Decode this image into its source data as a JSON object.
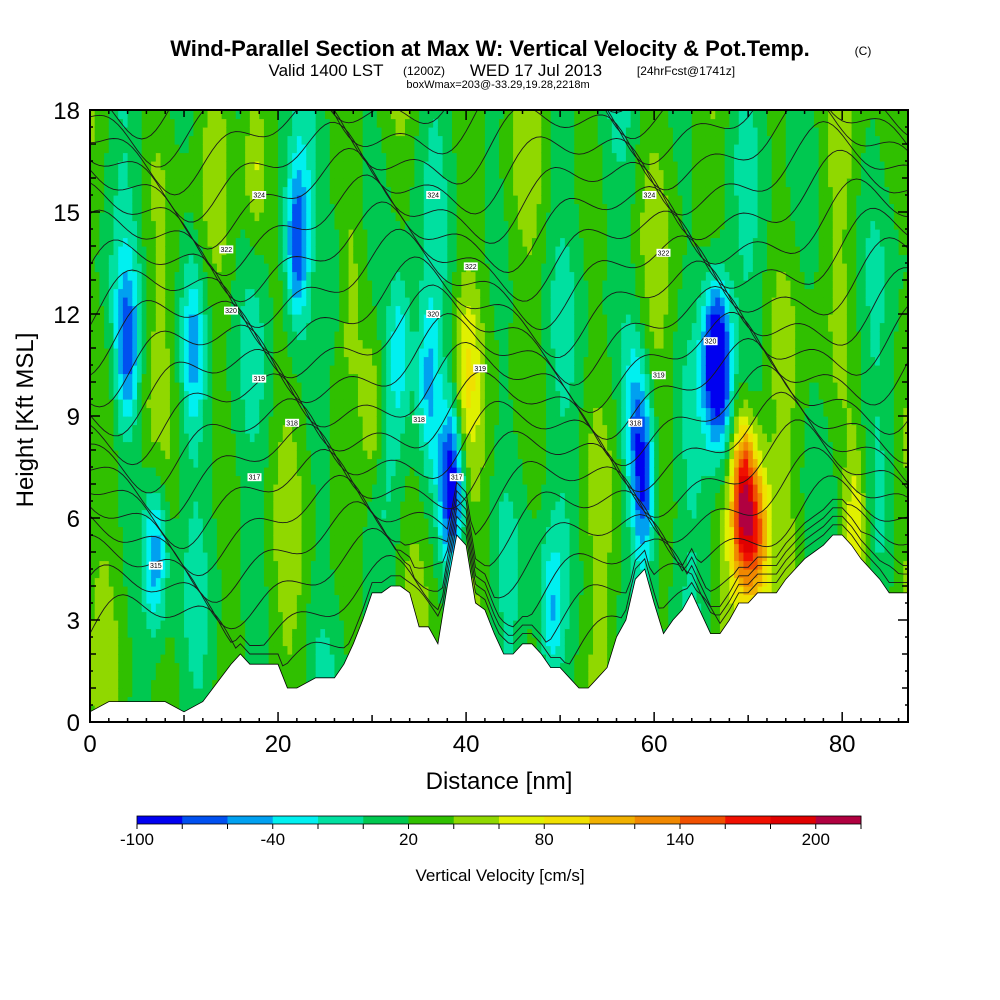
{
  "header": {
    "title": "Wind-Parallel Section at Max W: Vertical Velocity & Pot.Temp.",
    "copyright": "(C)",
    "valid_prefix": "Valid 1400 LST",
    "valid_utc": "(1200Z)",
    "valid_date": "WED 17 Jul 2013",
    "forecast": "[24hrFcst@1741z]",
    "box_info": "boxWmax=203@-33.29,19.28,2218m"
  },
  "chart_data": {
    "type": "heatmap",
    "title": "Wind-Parallel Section at Max W: Vertical Velocity & Pot.Temp.",
    "xlabel": "Distance [nm]",
    "ylabel": "Height [Kft MSL]",
    "xlim": [
      0,
      87
    ],
    "ylim": [
      0,
      18
    ],
    "x_ticks": [
      0,
      20,
      40,
      60,
      80
    ],
    "y_ticks": [
      0,
      3,
      6,
      9,
      12,
      15,
      18
    ],
    "x_tick_labels": [
      "0",
      "20",
      "40",
      "60",
      "80"
    ],
    "y_tick_labels": [
      "0",
      "3",
      "6",
      "9",
      "12",
      "15",
      "18"
    ],
    "colorbar": {
      "label": "Vertical Velocity [cm/s]",
      "min": -100,
      "max": 220,
      "step": 20,
      "tick_values": [
        -100,
        -40,
        20,
        80,
        140,
        200
      ],
      "tick_labels": [
        "-100",
        "-40",
        "20",
        "80",
        "140",
        "200"
      ],
      "colors": [
        "#0000f0",
        "#0050f0",
        "#00a0f0",
        "#00f0f0",
        "#00e0a0",
        "#00c850",
        "#30c000",
        "#90d800",
        "#e0f000",
        "#f0e000",
        "#f0b000",
        "#f08800",
        "#f05000",
        "#f01000",
        "#e00000",
        "#b00040"
      ]
    },
    "terrain_profile": {
      "x": [
        0,
        2,
        3,
        8,
        10,
        12,
        15,
        16,
        17,
        20,
        21,
        22,
        24,
        25,
        26,
        27,
        28,
        29,
        30,
        31,
        32,
        33,
        34,
        35,
        36,
        37,
        38,
        39,
        40,
        41,
        42,
        43,
        44,
        45,
        46,
        47,
        48,
        49,
        50,
        51,
        52,
        53,
        54,
        55,
        56,
        57,
        58,
        59,
        60,
        61,
        62,
        63,
        64,
        65,
        66,
        67,
        68,
        69,
        70,
        71,
        72,
        73,
        74,
        75,
        76,
        77,
        78,
        79,
        80,
        81,
        82,
        83,
        84,
        85,
        86,
        87
      ],
      "height": [
        0.3,
        0.6,
        0.6,
        0.6,
        0.3,
        0.6,
        1.7,
        2.0,
        1.7,
        1.7,
        1.0,
        1.0,
        1.3,
        1.3,
        1.3,
        1.7,
        2.3,
        3.0,
        3.8,
        3.8,
        4.0,
        4.0,
        3.8,
        2.8,
        2.8,
        2.3,
        4.0,
        5.5,
        5.2,
        3.5,
        3.3,
        2.6,
        2.0,
        2.0,
        2.3,
        2.3,
        2.0,
        1.6,
        1.6,
        1.3,
        1.0,
        1.0,
        1.3,
        1.6,
        2.5,
        3.0,
        4.2,
        4.5,
        3.5,
        2.6,
        3.0,
        3.3,
        3.8,
        3.2,
        2.6,
        2.6,
        3.0,
        3.5,
        3.5,
        3.8,
        3.8,
        3.8,
        4.2,
        4.5,
        4.8,
        5.0,
        5.2,
        5.5,
        5.5,
        5.2,
        4.8,
        4.5,
        4.2,
        3.8,
        3.8,
        3.8
      ],
      "fill": "#ffffff"
    },
    "vertical_velocity_features": [
      {
        "x": 4,
        "y": 11,
        "value": -60
      },
      {
        "x": 7,
        "y": 5,
        "value": -60
      },
      {
        "x": 11,
        "y": 11,
        "value": -40
      },
      {
        "x": 17.5,
        "y": 16.5,
        "value": 80
      },
      {
        "x": 22,
        "y": 14,
        "value": -80
      },
      {
        "x": 26,
        "y": 13,
        "value": -20
      },
      {
        "x": 30,
        "y": 9,
        "value": 80
      },
      {
        "x": 33,
        "y": 11,
        "value": -40
      },
      {
        "x": 36,
        "y": 10,
        "value": -40
      },
      {
        "x": 38.5,
        "y": 7,
        "value": -100
      },
      {
        "x": 40,
        "y": 10,
        "value": 60
      },
      {
        "x": 49,
        "y": 3,
        "value": -40
      },
      {
        "x": 58,
        "y": 9,
        "value": -40
      },
      {
        "x": 59,
        "y": 7,
        "value": -80
      },
      {
        "x": 66,
        "y": 11,
        "value": -40
      },
      {
        "x": 67,
        "y": 10.5,
        "value": -100
      },
      {
        "x": 69.5,
        "y": 6.5,
        "value": 200
      },
      {
        "x": 71,
        "y": 5.5,
        "value": 120
      },
      {
        "x": 81.5,
        "y": 6,
        "value": 80
      }
    ],
    "potential_temperature_contours": {
      "labels": [
        {
          "x": 7,
          "y": 4.6,
          "text": "315"
        },
        {
          "x": 17.5,
          "y": 7.2,
          "text": "317"
        },
        {
          "x": 21.5,
          "y": 8.8,
          "text": "318"
        },
        {
          "x": 18,
          "y": 10.1,
          "text": "319"
        },
        {
          "x": 15,
          "y": 12.1,
          "text": "320"
        },
        {
          "x": 14.5,
          "y": 13.9,
          "text": "322"
        },
        {
          "x": 18,
          "y": 15.5,
          "text": "324"
        },
        {
          "x": 35,
          "y": 8.9,
          "text": "318"
        },
        {
          "x": 36.5,
          "y": 12.0,
          "text": "320"
        },
        {
          "x": 41.5,
          "y": 10.4,
          "text": "319"
        },
        {
          "x": 40.5,
          "y": 13.4,
          "text": "322"
        },
        {
          "x": 36.5,
          "y": 15.5,
          "text": "324"
        },
        {
          "x": 39,
          "y": 7.2,
          "text": "317"
        },
        {
          "x": 58,
          "y": 8.8,
          "text": "318"
        },
        {
          "x": 60.5,
          "y": 10.2,
          "text": "319"
        },
        {
          "x": 61,
          "y": 13.8,
          "text": "322"
        },
        {
          "x": 59.5,
          "y": 15.5,
          "text": "324"
        },
        {
          "x": 66,
          "y": 11.2,
          "text": "320"
        }
      ]
    }
  }
}
